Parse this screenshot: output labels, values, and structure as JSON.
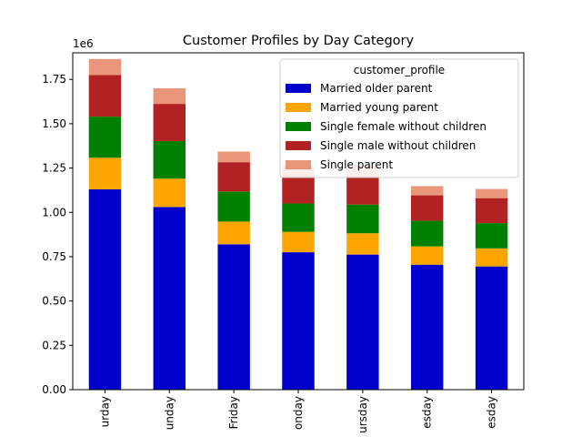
{
  "chart_data": {
    "type": "bar",
    "stacked": true,
    "title": "Customer Profiles by Day Category",
    "xlabel": "",
    "ylabel": "",
    "y_offset_label": "1e6",
    "ylim": [
      0,
      1900000
    ],
    "y_ticks": [
      0,
      250000,
      500000,
      750000,
      1000000,
      1250000,
      1500000,
      1750000
    ],
    "y_tick_labels": [
      "0.00",
      "0.25",
      "0.50",
      "0.75",
      "1.00",
      "1.25",
      "1.50",
      "1.75"
    ],
    "categories": [
      "urday",
      "unday",
      "Friday",
      "onday",
      "ursday",
      "esday",
      "esday"
    ],
    "legend": {
      "title": "customer_profile",
      "position": "upper-right"
    },
    "grid": false,
    "series": [
      {
        "name": "Married older parent",
        "color": "#0000cd",
        "values": [
          1130000,
          1030000,
          820000,
          775000,
          762000,
          705000,
          695000
        ]
      },
      {
        "name": "Married young parent",
        "color": "#ffa500",
        "values": [
          178000,
          160000,
          128000,
          115000,
          120000,
          103000,
          102000
        ]
      },
      {
        "name": "Single female without children",
        "color": "#008000",
        "values": [
          232000,
          212000,
          170000,
          160000,
          162000,
          145000,
          142000
        ]
      },
      {
        "name": "Single male without children",
        "color": "#b22222",
        "values": [
          235000,
          210000,
          165000,
          155000,
          158000,
          143000,
          141000
        ]
      },
      {
        "name": "Single parent",
        "color": "#e9967a",
        "values": [
          90000,
          88000,
          60000,
          60000,
          60000,
          52000,
          52000
        ]
      }
    ]
  }
}
